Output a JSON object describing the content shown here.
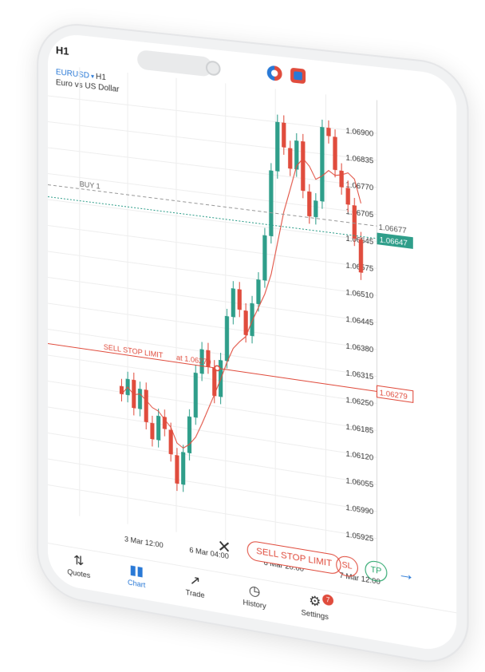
{
  "header": {
    "timeframe": "H1",
    "symbol": "EURUSD",
    "symbol_dropdown_glyph": "▾",
    "symbol_timeframe": "H1",
    "description": "Euro vs US Dollar"
  },
  "chart_data": {
    "type": "candlestick",
    "price_ticks": [
      "1.06900",
      "1.06835",
      "1.06770",
      "1.06705",
      "1.06645",
      "1.06575",
      "1.06510",
      "1.06445",
      "1.06380",
      "1.06315",
      "1.06250",
      "1.06185",
      "1.06120",
      "1.06055",
      "1.05990",
      "1.05925"
    ],
    "time_ticks": [
      "3 Mar 12:00",
      "6 Mar 04:00",
      "6 Mar 20:00",
      "7 Mar 12:00"
    ],
    "buy_line": {
      "label": "BUY 1",
      "price_label": "1.06677",
      "price": 1.06677
    },
    "bid_line": {
      "price_label": "1.06647",
      "price": 1.06647
    },
    "sell_stop_limit": {
      "label": "SELL STOP LIMIT",
      "at_label": "at 1.06279",
      "price_label": "1.06279",
      "price": 1.06279
    },
    "colors": {
      "up": "#2f9e8a",
      "down": "#e04c3d",
      "grid": "#eeeeee",
      "bid": "#2f9e8a"
    }
  },
  "order_bar": {
    "close_glyph": "✕",
    "type_label": "SELL STOP LIMIT",
    "sl_label": "SL",
    "tp_label": "TP",
    "arrow_glyph": "→"
  },
  "tabs": [
    {
      "label": "Quotes",
      "icon": "quotes-icon",
      "glyph": "⇅"
    },
    {
      "label": "Chart",
      "icon": "chart-icon",
      "glyph": "▮▮"
    },
    {
      "label": "Trade",
      "icon": "trade-icon",
      "glyph": "↗"
    },
    {
      "label": "History",
      "icon": "history-icon",
      "glyph": "◷"
    },
    {
      "label": "Settings",
      "icon": "settings-icon",
      "glyph": "⚙",
      "badge": "7"
    }
  ]
}
